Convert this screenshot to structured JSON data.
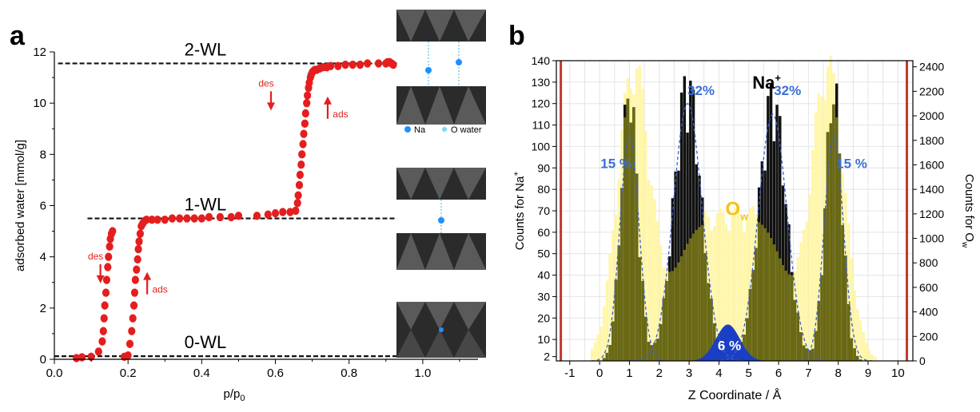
{
  "panels": {
    "a": {
      "letter": "a"
    },
    "b": {
      "letter": "b"
    }
  },
  "colors": {
    "points": "#e41e1e",
    "dashed": "#111111",
    "na_bars": "#111111",
    "ow_bars": "#fff6a8",
    "overlap": "#6b6a12",
    "fit": "#3a5ed6",
    "gauss_fill": "#1a3fc4",
    "wall": "#c0392b",
    "pct_text": "#3a6fd8",
    "ow_text": "#f0c419"
  },
  "icons": [
    "clay-layer-2wl-icon",
    "clay-layer-1wl-icon",
    "clay-layer-0wl-icon"
  ],
  "chart_data": [
    {
      "type": "scatter",
      "panel": "a",
      "xlabel": "p/p0",
      "ylabel": "adsorbed water [mmol/g]",
      "xlim": [
        0.0,
        1.15
      ],
      "ylim": [
        0,
        12
      ],
      "xticks": [
        "0.0",
        "0.2",
        "0.4",
        "0.6",
        "0.8",
        "1.0"
      ],
      "yticks": [
        "0",
        "2",
        "4",
        "6",
        "8",
        "10",
        "12"
      ],
      "grid": false,
      "levels": [
        {
          "label": "2-WL",
          "y": 11.55,
          "x_range": [
            0.01,
            0.93
          ]
        },
        {
          "label": "1-WL",
          "y": 5.5,
          "x_range": [
            0.09,
            0.93
          ]
        },
        {
          "label": "0-WL",
          "y": 0.12,
          "x_range": [
            0.0,
            0.93
          ]
        }
      ],
      "annotations": [
        {
          "text": "des",
          "x": 0.112,
          "y": 3.9,
          "arrow": "down"
        },
        {
          "text": "ads",
          "x": 0.265,
          "y": 2.85,
          "arrow": "up"
        },
        {
          "text": "des",
          "x": 0.575,
          "y": 10.65,
          "arrow": "down"
        },
        {
          "text": "ads",
          "x": 0.755,
          "y": 9.7,
          "arrow": "up"
        }
      ],
      "legend_items": [
        {
          "symbol": "Na",
          "text": "Na"
        },
        {
          "symbol": "O",
          "text": "O water"
        }
      ],
      "series": [
        {
          "x": [
            0.06,
            0.075,
            0.1,
            0.12,
            0.13,
            0.133,
            0.135,
            0.137,
            0.14,
            0.142,
            0.145,
            0.147,
            0.15,
            0.152,
            0.155,
            0.158,
            0.19,
            0.2,
            0.205,
            0.21,
            0.213,
            0.216,
            0.218,
            0.22,
            0.223,
            0.226,
            0.228,
            0.23,
            0.233,
            0.236,
            0.24,
            0.245,
            0.25,
            0.265,
            0.28,
            0.3,
            0.32,
            0.34,
            0.36,
            0.38,
            0.4,
            0.42,
            0.45,
            0.48,
            0.5,
            0.55,
            0.58,
            0.6,
            0.62,
            0.64,
            0.655,
            0.66,
            0.662,
            0.665,
            0.667,
            0.67,
            0.672,
            0.675,
            0.677,
            0.68,
            0.682,
            0.685,
            0.687,
            0.69,
            0.692,
            0.695,
            0.697,
            0.7,
            0.703,
            0.707,
            0.712,
            0.72,
            0.73,
            0.74,
            0.75,
            0.77,
            0.79,
            0.81,
            0.83,
            0.85,
            0.88,
            0.9,
            0.905,
            0.91,
            0.915,
            0.92
          ],
          "y": [
            0.05,
            0.08,
            0.1,
            0.3,
            0.7,
            1.1,
            1.6,
            2.1,
            2.6,
            3.1,
            3.6,
            4.0,
            4.4,
            4.7,
            4.9,
            5.0,
            0.1,
            0.15,
            0.6,
            1.1,
            1.6,
            2.1,
            2.6,
            3.1,
            3.5,
            3.9,
            4.3,
            4.6,
            4.9,
            5.2,
            5.3,
            5.4,
            5.45,
            5.45,
            5.45,
            5.45,
            5.5,
            5.5,
            5.5,
            5.5,
            5.5,
            5.55,
            5.55,
            5.55,
            5.6,
            5.6,
            5.65,
            5.7,
            5.75,
            5.75,
            5.8,
            6.1,
            6.4,
            6.8,
            7.2,
            7.6,
            8.0,
            8.4,
            8.8,
            9.2,
            9.6,
            10.0,
            10.3,
            10.6,
            10.8,
            11.0,
            11.1,
            11.2,
            11.25,
            11.3,
            11.3,
            11.35,
            11.4,
            11.4,
            11.45,
            11.45,
            11.5,
            11.5,
            11.5,
            11.55,
            11.55,
            11.55,
            11.6,
            11.6,
            11.55,
            11.5
          ]
        }
      ]
    },
    {
      "type": "bar",
      "panel": "b",
      "xlabel": "Z Coordinate / Å",
      "ylabel": "Counts for Na",
      "ylabel_sup": "+",
      "y2label": "Counts for O",
      "y2label_sub": "w",
      "xlim": [
        -1.45,
        10.5
      ],
      "ylim": [
        0,
        140
      ],
      "y2lim": [
        0,
        2450
      ],
      "xticks": [
        "-1",
        "0",
        "1",
        "2",
        "3",
        "4",
        "5",
        "6",
        "7",
        "8",
        "9",
        "10"
      ],
      "yticks": [
        "2",
        "10",
        "20",
        "30",
        "40",
        "50",
        "60",
        "70",
        "80",
        "90",
        "100",
        "110",
        "120",
        "130",
        "140"
      ],
      "y2ticks": [
        "0",
        "200",
        "400",
        "600",
        "800",
        "1000",
        "1200",
        "1400",
        "1600",
        "1800",
        "2000",
        "2200",
        "2400"
      ],
      "grid": true,
      "walls": [
        -1.3,
        10.3
      ],
      "labels": [
        {
          "text": "Na",
          "sup": "+",
          "x": 5.6,
          "y": 127
        },
        {
          "text": "O",
          "sub": "w",
          "x": 4.6,
          "y": 68
        },
        {
          "text": "15 %",
          "x": 0.55,
          "y": 90
        },
        {
          "text": "32%",
          "x": 3.4,
          "y": 124
        },
        {
          "text": "32%",
          "x": 6.3,
          "y": 124
        },
        {
          "text": "15 %",
          "x": 8.45,
          "y": 90
        },
        {
          "text": "6 %",
          "x": 4.35,
          "y": 5
        }
      ],
      "series": [
        {
          "name": "Na+",
          "axis": "left",
          "peaks": [
            {
              "center": 1.0,
              "height": 120,
              "sigma": 0.28
            },
            {
              "center": 2.95,
              "height": 123,
              "sigma": 0.45
            },
            {
              "center": 5.8,
              "height": 117,
              "sigma": 0.45
            },
            {
              "center": 7.85,
              "height": 120,
              "sigma": 0.28
            },
            {
              "center": 4.3,
              "height": 17,
              "sigma": 0.4
            }
          ],
          "bin_width": 0.1
        },
        {
          "name": "Ow",
          "axis": "right",
          "peaks": [
            {
              "center": 1.15,
              "height": 2300,
              "sigma": 0.55
            },
            {
              "center": 7.65,
              "height": 2300,
              "sigma": 0.55
            },
            {
              "center": 3.0,
              "height": 650,
              "sigma": 0.7
            },
            {
              "center": 5.75,
              "height": 650,
              "sigma": 0.7
            },
            {
              "center": 4.4,
              "height": 950,
              "sigma": 0.95
            }
          ],
          "bin_width": 0.1
        },
        {
          "name": "fit",
          "axis": "left",
          "peaks": [
            {
              "center": 1.0,
              "height": 105,
              "sigma": 0.32
            },
            {
              "center": 2.95,
              "height": 120,
              "sigma": 0.48
            },
            {
              "center": 5.8,
              "height": 115,
              "sigma": 0.48
            },
            {
              "center": 7.85,
              "height": 105,
              "sigma": 0.32
            },
            {
              "center": 4.3,
              "height": 16,
              "sigma": 0.4
            }
          ]
        }
      ]
    }
  ]
}
